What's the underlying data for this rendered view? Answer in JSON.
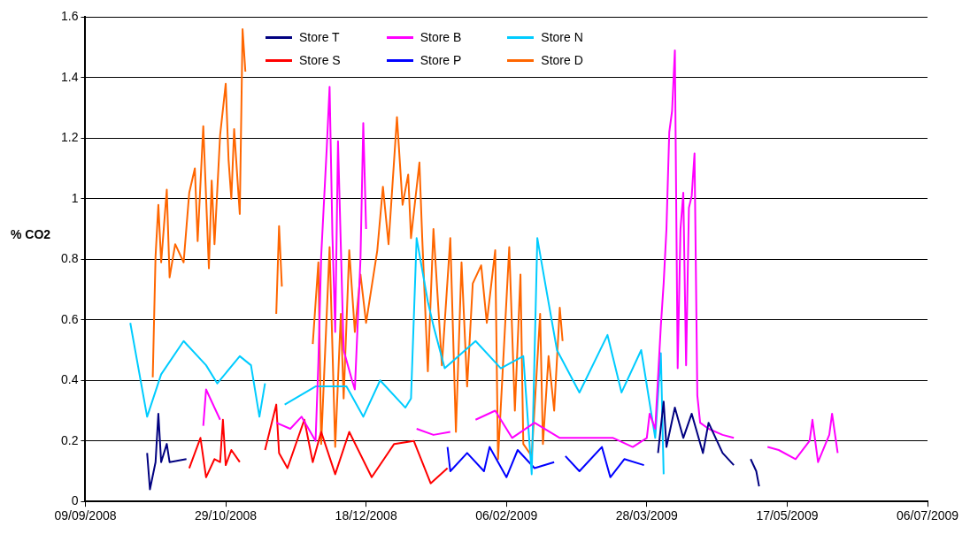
{
  "chart_data": {
    "type": "line",
    "ylabel": "% CO2",
    "xlim": [
      "2008-09-09",
      "2009-07-06"
    ],
    "xticks": [
      {
        "value": "2008-09-09",
        "label": "09/09/2008"
      },
      {
        "value": "2008-10-29",
        "label": "29/10/2008"
      },
      {
        "value": "2008-12-18",
        "label": "18/12/2008"
      },
      {
        "value": "2009-02-06",
        "label": "06/02/2009"
      },
      {
        "value": "2009-03-28",
        "label": "28/03/2009"
      },
      {
        "value": "2009-05-17",
        "label": "17/05/2009"
      },
      {
        "value": "2009-07-06",
        "label": "06/07/2009"
      }
    ],
    "ylim": [
      0,
      1.6
    ],
    "yticks": [
      0,
      0.2,
      0.4,
      0.6,
      0.8,
      1,
      1.2,
      1.4,
      1.6
    ],
    "grid": "y",
    "legend": "top",
    "series": [
      {
        "name": "Store T",
        "color": "#000080",
        "x": [
          "2008-10-01",
          "2008-10-02",
          "2008-10-04",
          "2008-10-05",
          "2008-10-06",
          "2008-10-08",
          "2008-10-09",
          "2008-10-15",
          "2009-01-01",
          "2009-04-01",
          "2009-04-03",
          "2009-04-04",
          "2009-04-07",
          "2009-04-10",
          "2009-04-13",
          "2009-04-17",
          "2009-04-19",
          "2009-04-24",
          "2009-04-28",
          "2009-05-01",
          "2009-05-04",
          "2009-05-06",
          "2009-05-07"
        ],
        "values": [
          0.16,
          0.04,
          0.13,
          0.29,
          0.13,
          0.19,
          0.13,
          0.14,
          null,
          0.16,
          0.33,
          0.18,
          0.31,
          0.21,
          0.29,
          0.16,
          0.26,
          0.16,
          0.12,
          null,
          0.14,
          0.1,
          0.05
        ]
      },
      {
        "name": "Store B",
        "color": "#ff00ff",
        "x": [
          "2008-10-21",
          "2008-10-22",
          "2008-10-24",
          "2008-10-27",
          "2008-11-01",
          "2008-11-16",
          "2008-11-21",
          "2008-11-25",
          "2008-11-30",
          "2008-12-01",
          "2008-12-02",
          "2008-12-04",
          "2008-12-05",
          "2008-12-06",
          "2008-12-07",
          "2008-12-08",
          "2008-12-10",
          "2008-12-13",
          "2008-12-14",
          "2008-12-16",
          "2008-12-17",
          "2008-12-18",
          "2008-12-30",
          "2009-01-05",
          "2009-01-11",
          "2009-01-17",
          "2009-01-22",
          "2009-01-26",
          "2009-02-02",
          "2009-02-08",
          "2009-02-16",
          "2009-02-25",
          "2009-03-04",
          "2009-03-16",
          "2009-03-23",
          "2009-03-28",
          "2009-03-29",
          "2009-03-31",
          "2009-04-02",
          "2009-04-03",
          "2009-04-04",
          "2009-04-05",
          "2009-04-06",
          "2009-04-07",
          "2009-04-08",
          "2009-04-09",
          "2009-04-10",
          "2009-04-11",
          "2009-04-12",
          "2009-04-13",
          "2009-04-14",
          "2009-04-15",
          "2009-04-16",
          "2009-04-19",
          "2009-04-24",
          "2009-04-28",
          "2009-05-05",
          "2009-05-10",
          "2009-05-14",
          "2009-05-20",
          "2009-05-25",
          "2009-05-26",
          "2009-05-28",
          "2009-06-01",
          "2009-06-02",
          "2009-06-04"
        ],
        "values": [
          0.25,
          0.37,
          0.33,
          0.27,
          null,
          0.26,
          0.24,
          0.28,
          0.2,
          0.46,
          0.81,
          1.17,
          1.37,
          0.88,
          0.56,
          1.19,
          0.5,
          0.4,
          0.37,
          0.8,
          1.25,
          0.9,
          null,
          0.24,
          0.22,
          0.23,
          null,
          0.27,
          0.3,
          0.21,
          0.26,
          0.21,
          0.21,
          0.21,
          0.18,
          0.21,
          0.29,
          0.24,
          0.58,
          0.72,
          0.9,
          1.22,
          1.29,
          1.49,
          0.44,
          0.9,
          1.02,
          0.45,
          0.97,
          1.01,
          1.15,
          0.35,
          0.26,
          0.24,
          0.22,
          0.21,
          null,
          0.18,
          0.17,
          0.14,
          0.2,
          0.27,
          0.13,
          0.22,
          0.29,
          0.16
        ]
      },
      {
        "name": "Store N",
        "color": "#00ccff",
        "x": [
          "2008-09-25",
          "2008-10-01",
          "2008-10-06",
          "2008-10-14",
          "2008-10-22",
          "2008-10-26",
          "2008-11-03",
          "2008-11-07",
          "2008-11-10",
          "2008-11-12",
          "2008-11-15",
          "2008-11-19",
          "2008-11-30",
          "2008-12-11",
          "2008-12-17",
          "2008-12-23",
          "2009-01-01",
          "2009-01-03",
          "2009-01-05",
          "2009-01-09",
          "2009-01-11",
          "2009-01-15",
          "2009-01-26",
          "2009-02-04",
          "2009-02-08",
          "2009-02-12",
          "2009-02-15",
          "2009-02-17",
          "2009-02-20",
          "2009-02-24",
          "2009-03-04",
          "2009-03-14",
          "2009-03-19",
          "2009-03-26",
          "2009-03-31",
          "2009-04-02",
          "2009-04-03"
        ],
        "values": [
          0.59,
          0.28,
          0.42,
          0.53,
          0.45,
          0.39,
          0.48,
          0.45,
          0.28,
          0.39,
          null,
          0.32,
          0.38,
          0.38,
          0.28,
          0.4,
          0.31,
          0.34,
          0.87,
          0.66,
          0.58,
          0.44,
          0.53,
          0.44,
          0.46,
          0.48,
          0.09,
          0.87,
          0.71,
          0.5,
          0.36,
          0.55,
          0.36,
          0.5,
          0.21,
          0.49,
          0.09
        ]
      },
      {
        "name": "Store S",
        "color": "#ff0000",
        "x": [
          "2008-10-16",
          "2008-10-20",
          "2008-10-22",
          "2008-10-25",
          "2008-10-27",
          "2008-10-28",
          "2008-10-29",
          "2008-10-31",
          "2008-11-03",
          "2008-11-07",
          "2008-11-12",
          "2008-11-16",
          "2008-11-17",
          "2008-11-20",
          "2008-11-26",
          "2008-11-29",
          "2008-12-02",
          "2008-12-07",
          "2008-12-12",
          "2008-12-20",
          "2008-12-28",
          "2009-01-04",
          "2009-01-10",
          "2009-01-16"
        ],
        "values": [
          0.11,
          0.21,
          0.08,
          0.14,
          0.13,
          0.27,
          0.12,
          0.17,
          0.13,
          null,
          0.17,
          0.32,
          0.16,
          0.11,
          0.27,
          0.13,
          0.23,
          0.09,
          0.23,
          0.08,
          0.19,
          0.2,
          0.06,
          0.11
        ]
      },
      {
        "name": "Store P",
        "color": "#0000ff",
        "x": [
          "2009-01-16",
          "2009-01-17",
          "2009-01-23",
          "2009-01-29",
          "2009-01-31",
          "2009-02-06",
          "2009-02-10",
          "2009-02-16",
          "2009-02-23",
          "2009-02-25",
          "2009-02-27",
          "2009-03-04",
          "2009-03-12",
          "2009-03-15",
          "2009-03-20",
          "2009-03-27"
        ],
        "values": [
          0.18,
          0.1,
          0.16,
          0.1,
          0.18,
          0.08,
          0.17,
          0.11,
          0.13,
          null,
          0.15,
          0.1,
          0.18,
          0.08,
          0.14,
          0.12
        ]
      },
      {
        "name": "Store D",
        "color": "#ff6600",
        "x": [
          "2008-10-03",
          "2008-10-04",
          "2008-10-05",
          "2008-10-06",
          "2008-10-08",
          "2008-10-09",
          "2008-10-11",
          "2008-10-14",
          "2008-10-16",
          "2008-10-18",
          "2008-10-19",
          "2008-10-21",
          "2008-10-23",
          "2008-10-24",
          "2008-10-25",
          "2008-10-27",
          "2008-10-29",
          "2008-10-30",
          "2008-10-31",
          "2008-11-01",
          "2008-11-03",
          "2008-11-04",
          "2008-11-05",
          "2008-11-10",
          "2008-11-16",
          "2008-11-17",
          "2008-11-18",
          "2008-11-23",
          "2008-11-29",
          "2008-12-01",
          "2008-12-02",
          "2008-12-05",
          "2008-12-07",
          "2008-12-09",
          "2008-12-10",
          "2008-12-12",
          "2008-12-14",
          "2008-12-16",
          "2008-12-18",
          "2008-12-22",
          "2008-12-24",
          "2008-12-26",
          "2008-12-29",
          "2008-12-31",
          "2009-01-02",
          "2009-01-03",
          "2009-01-06",
          "2009-01-07",
          "2009-01-09",
          "2009-01-11",
          "2009-01-14",
          "2009-01-17",
          "2009-01-19",
          "2009-01-21",
          "2009-01-23",
          "2009-01-25",
          "2009-01-28",
          "2009-01-30",
          "2009-02-02",
          "2009-02-03",
          "2009-02-07",
          "2009-02-09",
          "2009-02-11",
          "2009-02-12",
          "2009-02-15",
          "2009-02-18",
          "2009-02-19",
          "2009-02-21",
          "2009-02-23",
          "2009-02-25",
          "2009-02-26"
        ],
        "values": [
          0.41,
          0.81,
          0.98,
          0.79,
          1.03,
          0.74,
          0.85,
          0.79,
          1.02,
          1.1,
          0.86,
          1.24,
          0.77,
          1.06,
          0.85,
          1.21,
          1.38,
          1.13,
          1.0,
          1.23,
          0.95,
          1.56,
          1.42,
          null,
          0.62,
          0.91,
          0.71,
          null,
          0.52,
          0.79,
          0.19,
          0.84,
          0.18,
          0.62,
          0.34,
          0.83,
          0.56,
          0.75,
          0.59,
          0.83,
          1.04,
          0.85,
          1.27,
          0.98,
          1.08,
          0.87,
          1.12,
          0.87,
          0.43,
          0.9,
          0.45,
          0.87,
          0.23,
          0.79,
          0.38,
          0.72,
          0.78,
          0.59,
          0.83,
          0.14,
          0.84,
          0.3,
          0.75,
          0.19,
          0.15,
          0.62,
          0.19,
          0.48,
          0.3,
          0.64,
          0.53
        ]
      }
    ]
  }
}
